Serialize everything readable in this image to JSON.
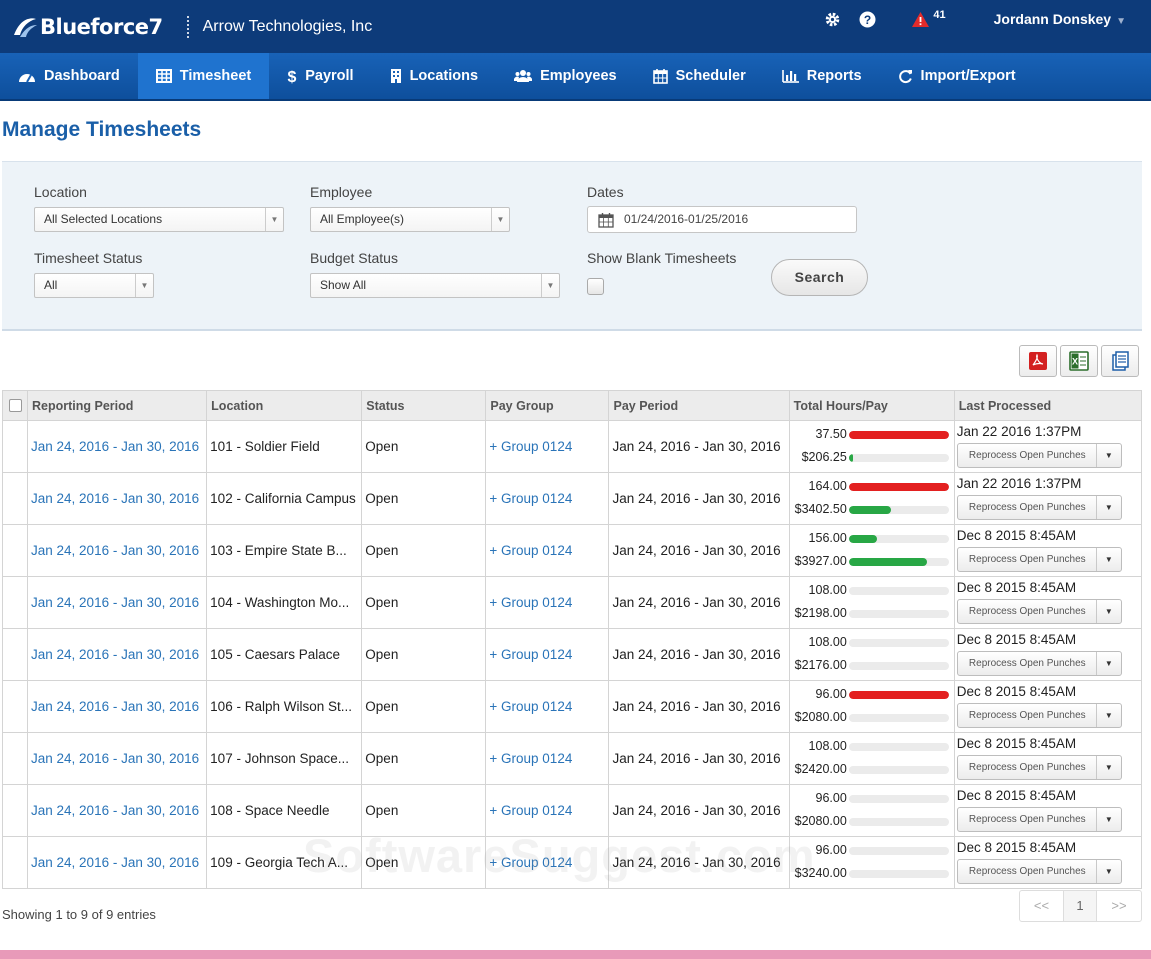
{
  "app": {
    "brand": "Blueforce7",
    "company": "Arrow Technologies, Inc",
    "alert_count": "41",
    "user_name": "Jordann Donskey",
    "page_title": "Manage Timesheets",
    "watermark": "SoftwareSuggest.com",
    "colors": {
      "header": "#0d3b7a",
      "nav": "#1862b7",
      "nav_active": "#1f73cf",
      "link": "#2a74b8",
      "title": "#1a5fa8",
      "bar_red": "#e32020",
      "bar_green": "#28a745"
    }
  },
  "header_icons": [
    "gear-icon",
    "help-icon",
    "alert-icon",
    "chevron-down-icon"
  ],
  "nav": [
    {
      "label": "Dashboard",
      "icon": "dashboard-icon",
      "active": false
    },
    {
      "label": "Timesheet",
      "icon": "table-icon",
      "active": true
    },
    {
      "label": "Payroll",
      "icon": "dollar-icon",
      "active": false
    },
    {
      "label": "Locations",
      "icon": "building-icon",
      "active": false
    },
    {
      "label": "Employees",
      "icon": "users-icon",
      "active": false
    },
    {
      "label": "Scheduler",
      "icon": "calendar-icon",
      "active": false
    },
    {
      "label": "Reports",
      "icon": "bar-chart-icon",
      "active": false
    },
    {
      "label": "Import/Export",
      "icon": "refresh-icon",
      "active": false
    }
  ],
  "filters": {
    "location": {
      "label": "Location",
      "value": "All Selected Locations"
    },
    "employee": {
      "label": "Employee",
      "value": "All Employee(s)"
    },
    "dates": {
      "label": "Dates",
      "value": "01/24/2016-01/25/2016"
    },
    "timesheet_status": {
      "label": "Timesheet Status",
      "value": "All"
    },
    "budget_status": {
      "label": "Budget Status",
      "value": "Show All"
    },
    "show_blank": {
      "label": "Show Blank Timesheets",
      "checked": false
    },
    "search_label": "Search"
  },
  "export_icons": [
    "pdf-icon",
    "excel-icon",
    "document-icon"
  ],
  "table": {
    "columns": [
      "Reporting Period",
      "Location",
      "Status",
      "Pay Group",
      "Pay Period",
      "Total Hours/Pay",
      "Last Processed"
    ],
    "reprocess_label": "Reprocess Open Punches",
    "rows": [
      {
        "reporting": "Jan 24, 2016 - Jan 30, 2016",
        "location": "101 - Soldier Field",
        "status": "Open",
        "group": "+ Group 0124",
        "period": "Jan 24, 2016 - Jan 30, 2016",
        "hours": "37.50",
        "pay": "$206.25",
        "hours_fill": 1.0,
        "hours_color": "#e32020",
        "pay_fill": 0.04,
        "pay_color": "#28a745",
        "last": "Jan 22 2016 1:37PM"
      },
      {
        "reporting": "Jan 24, 2016 - Jan 30, 2016",
        "location": "102 - California Campus",
        "status": "Open",
        "group": "+ Group 0124",
        "period": "Jan 24, 2016 - Jan 30, 2016",
        "hours": "164.00",
        "pay": "$3402.50",
        "hours_fill": 1.0,
        "hours_color": "#e32020",
        "pay_fill": 0.42,
        "pay_color": "#28a745",
        "last": "Jan 22 2016 1:37PM"
      },
      {
        "reporting": "Jan 24, 2016 - Jan 30, 2016",
        "location": "103 - Empire State B...",
        "status": "Open",
        "group": "+ Group 0124",
        "period": "Jan 24, 2016 - Jan 30, 2016",
        "hours": "156.00",
        "pay": "$3927.00",
        "hours_fill": 0.28,
        "hours_color": "#28a745",
        "pay_fill": 0.78,
        "pay_color": "#28a745",
        "last": "Dec 8 2015 8:45AM"
      },
      {
        "reporting": "Jan 24, 2016 - Jan 30, 2016",
        "location": "104 - Washington Mo...",
        "status": "Open",
        "group": "+ Group 0124",
        "period": "Jan 24, 2016 - Jan 30, 2016",
        "hours": "108.00",
        "pay": "$2198.00",
        "hours_fill": 0,
        "hours_color": "#28a745",
        "pay_fill": 0,
        "pay_color": "#28a745",
        "last": "Dec 8 2015 8:45AM"
      },
      {
        "reporting": "Jan 24, 2016 - Jan 30, 2016",
        "location": "105 - Caesars Palace",
        "status": "Open",
        "group": "+ Group 0124",
        "period": "Jan 24, 2016 - Jan 30, 2016",
        "hours": "108.00",
        "pay": "$2176.00",
        "hours_fill": 0,
        "hours_color": "#28a745",
        "pay_fill": 0,
        "pay_color": "#28a745",
        "last": "Dec 8 2015 8:45AM"
      },
      {
        "reporting": "Jan 24, 2016 - Jan 30, 2016",
        "location": "106 - Ralph Wilson St...",
        "status": "Open",
        "group": "+ Group 0124",
        "period": "Jan 24, 2016 - Jan 30, 2016",
        "hours": "96.00",
        "pay": "$2080.00",
        "hours_fill": 1.0,
        "hours_color": "#e32020",
        "pay_fill": 0,
        "pay_color": "#28a745",
        "last": "Dec 8 2015 8:45AM"
      },
      {
        "reporting": "Jan 24, 2016 - Jan 30, 2016",
        "location": "107 - Johnson Space...",
        "status": "Open",
        "group": "+ Group 0124",
        "period": "Jan 24, 2016 - Jan 30, 2016",
        "hours": "108.00",
        "pay": "$2420.00",
        "hours_fill": 0,
        "hours_color": "#28a745",
        "pay_fill": 0,
        "pay_color": "#28a745",
        "last": "Dec 8 2015 8:45AM"
      },
      {
        "reporting": "Jan 24, 2016 - Jan 30, 2016",
        "location": "108 - Space Needle",
        "status": "Open",
        "group": "+ Group 0124",
        "period": "Jan 24, 2016 - Jan 30, 2016",
        "hours": "96.00",
        "pay": "$2080.00",
        "hours_fill": 0,
        "hours_color": "#28a745",
        "pay_fill": 0,
        "pay_color": "#28a745",
        "last": "Dec 8 2015 8:45AM"
      },
      {
        "reporting": "Jan 24, 2016 - Jan 30, 2016",
        "location": "109 - Georgia Tech A...",
        "status": "Open",
        "group": "+ Group 0124",
        "period": "Jan 24, 2016 - Jan 30, 2016",
        "hours": "96.00",
        "pay": "$3240.00",
        "hours_fill": 0,
        "hours_color": "#28a745",
        "pay_fill": 0,
        "pay_color": "#28a745",
        "last": "Dec 8 2015 8:45AM"
      }
    ]
  },
  "footer": {
    "entries": "Showing 1 to 9 of 9 entries",
    "prev": "<<",
    "page": "1",
    "next": ">>"
  }
}
